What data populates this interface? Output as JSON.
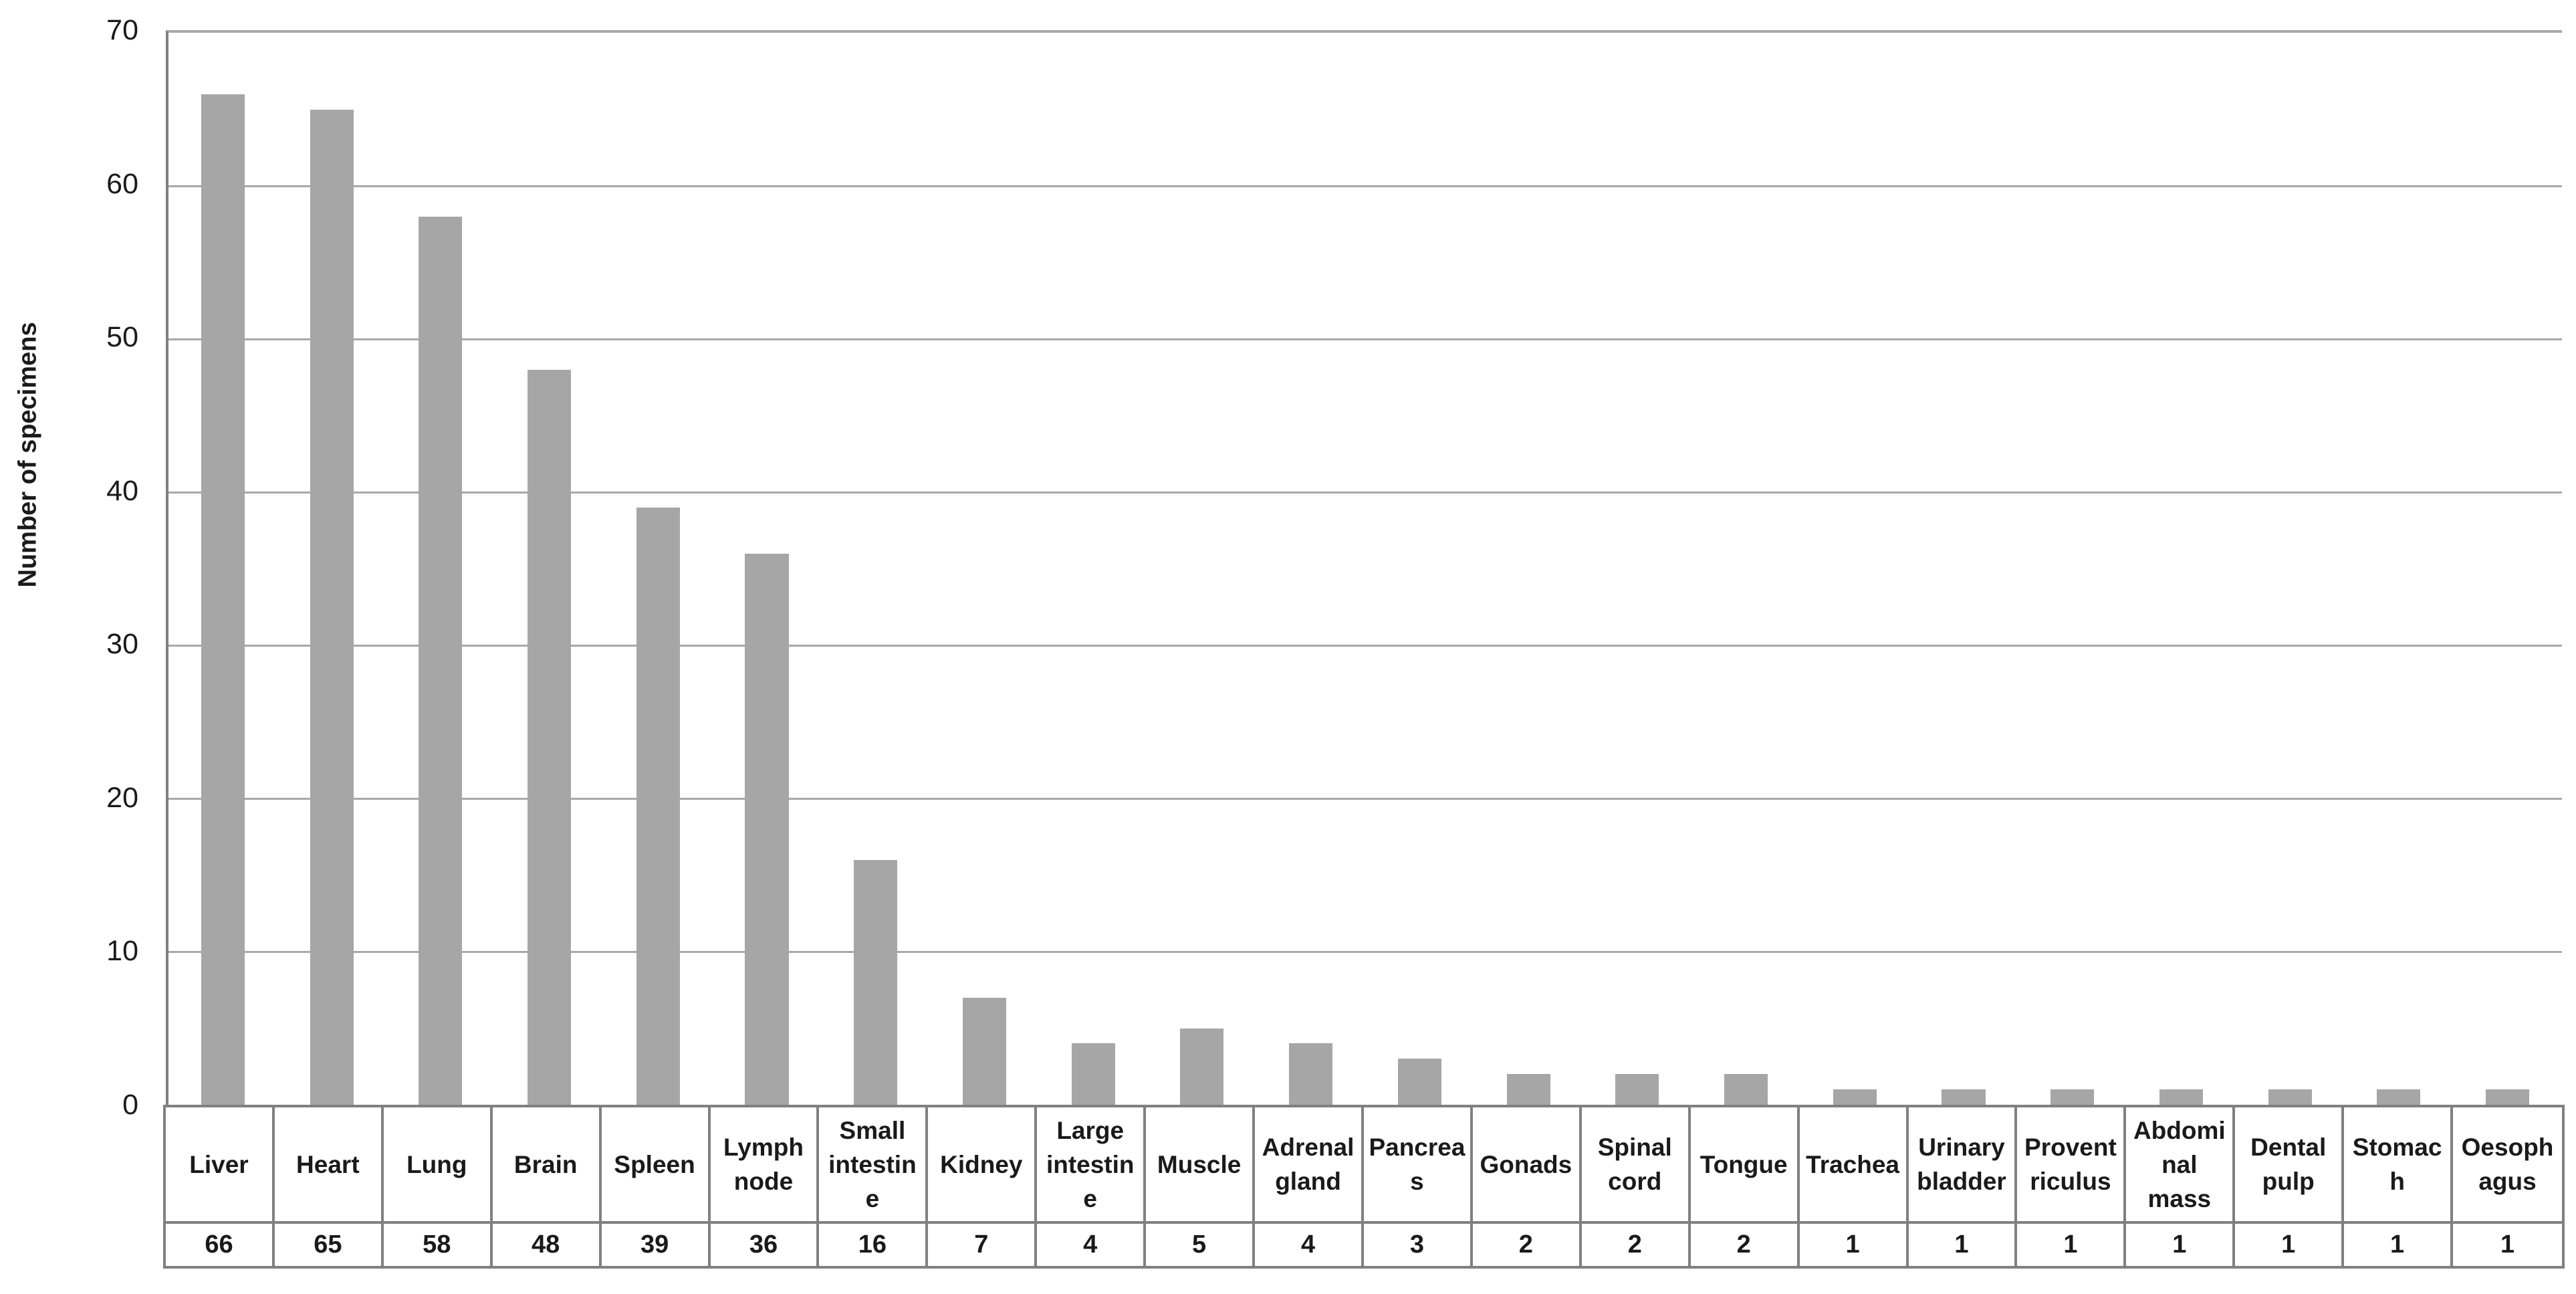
{
  "chart_data": {
    "type": "bar",
    "title": "",
    "xlabel": "",
    "ylabel": "Number of specimens",
    "ylim": [
      0,
      70
    ],
    "ytick_step": 10,
    "yticks": [
      70,
      60,
      50,
      40,
      30,
      20,
      10,
      0
    ],
    "grid": "horizontal",
    "legend": "none",
    "categories": [
      "Liver",
      "Heart",
      "Lung",
      "Brain",
      "Spleen",
      "Lymph node",
      "Small intestine",
      "Kidney",
      "Large intestine",
      "Muscle",
      "Adrenal gland",
      "Pancreas",
      "Gonads",
      "Spinal cord",
      "Tongue",
      "Trachea",
      "Urinary bladder",
      "Proventriculus",
      "Abdominal mass",
      "Dental pulp",
      "Stomach",
      "Oesophagus"
    ],
    "values": [
      66,
      65,
      58,
      48,
      39,
      36,
      16,
      7,
      4,
      5,
      4,
      3,
      2,
      2,
      2,
      1,
      1,
      1,
      1,
      1,
      1,
      1
    ],
    "category_label_lines": [
      [
        "Liver"
      ],
      [
        "Heart"
      ],
      [
        "Lung"
      ],
      [
        "Brain"
      ],
      [
        "Spleen"
      ],
      [
        "Lymph",
        "node"
      ],
      [
        "Small",
        "intestin",
        "e"
      ],
      [
        "Kidney"
      ],
      [
        "Large",
        "intestin",
        "e"
      ],
      [
        "Muscle"
      ],
      [
        "Adrenal",
        "gland"
      ],
      [
        "Pancrea",
        "s"
      ],
      [
        "Gonads"
      ],
      [
        "Spinal",
        "cord"
      ],
      [
        "Tongue"
      ],
      [
        "Trachea"
      ],
      [
        "Urinary",
        "bladder"
      ],
      [
        "Provent",
        "riculus"
      ],
      [
        "Abdomi",
        "nal",
        "mass"
      ],
      [
        "Dental",
        "pulp"
      ],
      [
        "Stomac",
        "h"
      ],
      [
        "Oesoph",
        "agus"
      ]
    ],
    "data_table": {
      "shown": true,
      "row_description": "specimen counts repeated under each category label"
    }
  },
  "colors": {
    "background": "#ffffff",
    "bar": "#a6a6a6",
    "gridline": "#a8a8a8",
    "axis_and_table_border": "#808080",
    "text": "#1a1a1a"
  }
}
